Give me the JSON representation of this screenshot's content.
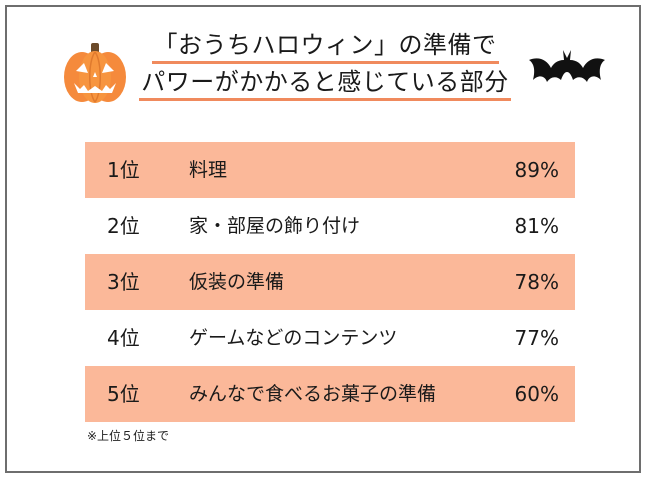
{
  "title": {
    "line1": "「おうちハロウィン」の準備で",
    "line2": "パワーがかかると感じている部分"
  },
  "icons": {
    "left": "jack-o-lantern-icon",
    "right": "bat-icon"
  },
  "colors": {
    "row_highlight": "#fbb899",
    "underline": "#f08a5d",
    "pumpkin": "#f58a3c",
    "bat": "#111111"
  },
  "chart_data": {
    "type": "table",
    "rows": [
      {
        "rank": "1位",
        "item": "料理",
        "value": 89,
        "label": "89%"
      },
      {
        "rank": "2位",
        "item": "家・部屋の飾り付け",
        "value": 81,
        "label": "81%"
      },
      {
        "rank": "3位",
        "item": "仮装の準備",
        "value": 78,
        "label": "78%"
      },
      {
        "rank": "4位",
        "item": "ゲームなどのコンテンツ",
        "value": 77,
        "label": "77%"
      },
      {
        "rank": "5位",
        "item": "みんなで食べるお菓子の準備",
        "value": 60,
        "label": "60%"
      }
    ]
  },
  "footnote": "※上位５位まで"
}
